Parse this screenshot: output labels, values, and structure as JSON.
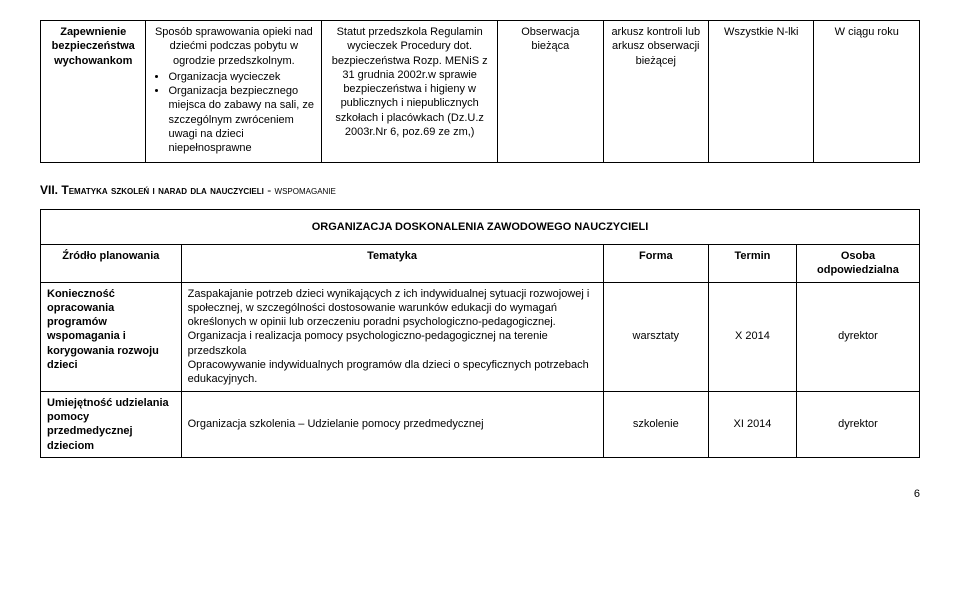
{
  "table1": {
    "row": {
      "c1": "Zapewnienie bezpieczeństwa wychowankom",
      "c2_intro": "Sposób sprawowania opieki nad dziećmi podczas pobytu w ogrodzie przedszkolnym.",
      "c2_b1": "Organizacja wycieczek",
      "c2_b2": "Organizacja bezpiecznego miejsca do zabawy na sali, ze szczególnym zwróceniem uwagi na dzieci niepełnosprawne",
      "c3": "Statut przedszkola Regulamin wycieczek Procedury dot. bezpieczeństwa Rozp. MENiS z 31 grudnia 2002r.w sprawie bezpieczeństwa i higieny w publicznych i niepublicznych szkołach i placówkach (Dz.U.z 2003r.Nr 6, poz.69 ze zm,)",
      "c4": "Obserwacja bieżąca",
      "c5": "arkusz kontroli lub arkusz obserwacji bieżącej",
      "c6": "Wszystkie N-lki",
      "c7": "W ciągu roku"
    }
  },
  "section7": {
    "roman": "VII.",
    "title": "Tematyka szkoleń i narad dla nauczycieli",
    "suffix": "-  wspomaganie"
  },
  "table2": {
    "header_full": "ORGANIZACJA  DOSKONALENIA  ZAWODOWEGO  NAUCZYCIELI",
    "h1": "Źródło planowania",
    "h2": "Tematyka",
    "h3": "Forma",
    "h4": "Termin",
    "h5": "Osoba odpowiedzialna",
    "r1": {
      "c1": "Konieczność opracowania programów wspomagania i korygowania rozwoju dzieci",
      "c2": "Zaspakajanie potrzeb dzieci wynikających z ich indywidualnej sytuacji rozwojowej i społecznej, w szczególności dostosowanie warunków edukacji do wymagań określonych w opinii lub orzeczeniu poradni psychologiczno-pedagogicznej.\nOrganizacja i realizacja pomocy psychologiczno-pedagogicznej na terenie przedszkola\nOpracowywanie indywidualnych programów dla dzieci o specyficznych potrzebach edukacyjnych.",
      "c3": "warsztaty",
      "c4": "X 2014",
      "c5": "dyrektor"
    },
    "r2": {
      "c1": "Umiejętność udzielania pomocy przedmedycznej dzieciom",
      "c2": "Organizacja szkolenia – Udzielanie pomocy przedmedycznej",
      "c3": "szkolenie",
      "c4": "XI 2014",
      "c5": "dyrektor"
    }
  },
  "page_number": "6"
}
